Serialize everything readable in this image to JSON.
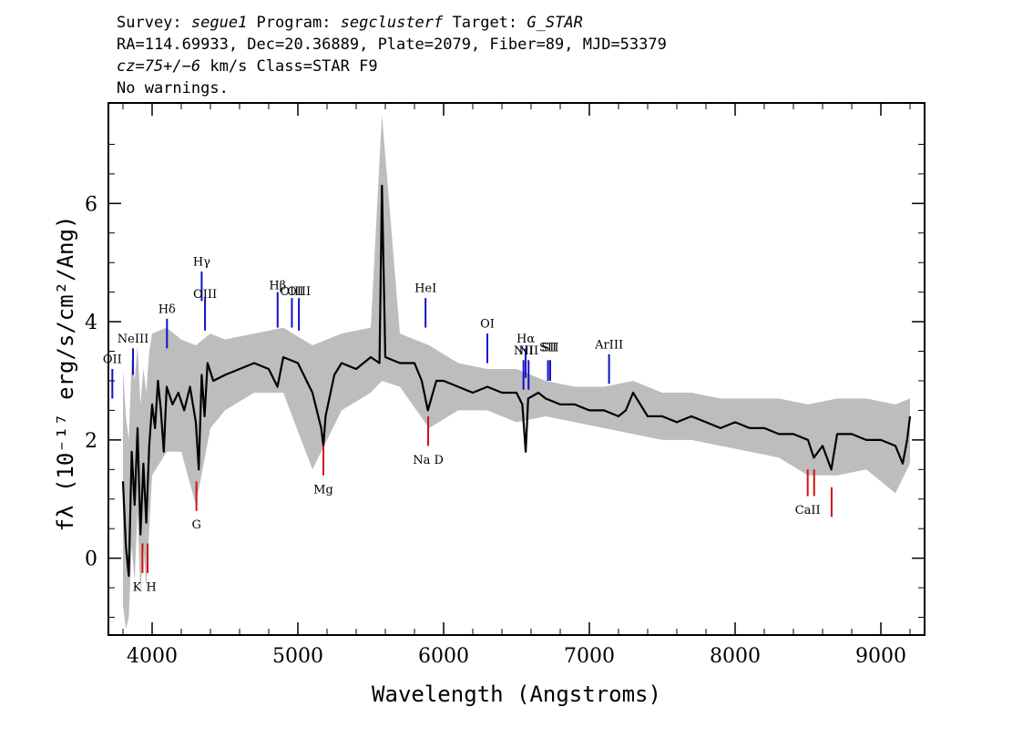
{
  "header": {
    "line1": {
      "survey_label": "Survey: ",
      "survey": "segue1",
      "program_label": " Program: ",
      "program": "segclusterf",
      "target_label": " Target: ",
      "target": "G_STAR"
    },
    "line2": "RA=114.69933, Dec=20.36889, Plate=2079, Fiber=89, MJD=53379",
    "line3": {
      "cz": "cz=75+/−6",
      "rest": " km/s Class=STAR F9"
    },
    "line4": "No warnings."
  },
  "colors": {
    "flux": "#000000",
    "error": "#bdbdbd",
    "emission": "#1010c8",
    "absorption": "#d01010",
    "sky": "#000000"
  },
  "chart_data": {
    "type": "line",
    "xlabel": "Wavelength (Angstroms)",
    "ylabel": "fλ (10⁻¹⁷ erg/s/cm²/Ang)",
    "xlim": [
      3700,
      9300
    ],
    "ylim": [
      -1.3,
      7.7
    ],
    "x_ticks": [
      4000,
      5000,
      6000,
      7000,
      8000,
      9000
    ],
    "y_ticks": [
      0,
      2,
      4,
      6
    ],
    "grid": false,
    "series": [
      {
        "role": "flux",
        "x": [
          3800,
          3820,
          3840,
          3860,
          3880,
          3900,
          3920,
          3940,
          3960,
          3980,
          4000,
          4020,
          4040,
          4060,
          4080,
          4100,
          4140,
          4180,
          4220,
          4260,
          4300,
          4320,
          4340,
          4360,
          4380,
          4420,
          4500,
          4600,
          4700,
          4800,
          4860,
          4900,
          5000,
          5100,
          5160,
          5175,
          5190,
          5250,
          5300,
          5400,
          5500,
          5560,
          5577,
          5600,
          5700,
          5800,
          5850,
          5892,
          5950,
          6000,
          6100,
          6200,
          6300,
          6400,
          6500,
          6540,
          6563,
          6580,
          6650,
          6700,
          6800,
          6900,
          7000,
          7100,
          7200,
          7250,
          7300,
          7400,
          7500,
          7600,
          7700,
          7800,
          7900,
          8000,
          8100,
          8200,
          8300,
          8400,
          8500,
          8540,
          8600,
          8660,
          8700,
          8800,
          8900,
          9000,
          9100,
          9150,
          9180,
          9200
        ],
        "y": [
          1.3,
          0.2,
          -0.3,
          1.8,
          0.9,
          2.2,
          0.4,
          1.6,
          0.6,
          1.9,
          2.6,
          2.2,
          3.0,
          2.5,
          1.8,
          2.9,
          2.6,
          2.8,
          2.5,
          2.9,
          2.3,
          1.5,
          3.1,
          2.4,
          3.3,
          3.0,
          3.1,
          3.2,
          3.3,
          3.2,
          2.9,
          3.4,
          3.3,
          2.8,
          2.2,
          1.9,
          2.4,
          3.1,
          3.3,
          3.2,
          3.4,
          3.3,
          6.3,
          3.4,
          3.3,
          3.3,
          3.0,
          2.5,
          3.0,
          3.0,
          2.9,
          2.8,
          2.9,
          2.8,
          2.8,
          2.6,
          1.8,
          2.7,
          2.8,
          2.7,
          2.6,
          2.6,
          2.5,
          2.5,
          2.4,
          2.5,
          2.8,
          2.4,
          2.4,
          2.3,
          2.4,
          2.3,
          2.2,
          2.3,
          2.2,
          2.2,
          2.1,
          2.1,
          2.0,
          1.7,
          1.9,
          1.5,
          2.1,
          2.1,
          2.0,
          2.0,
          1.9,
          1.6,
          2.0,
          2.4
        ]
      },
      {
        "role": "error",
        "x": [
          3800,
          3820,
          3840,
          3860,
          3880,
          3900,
          3920,
          3940,
          3960,
          3980,
          4000,
          4100,
          4200,
          4300,
          4400,
          4500,
          4700,
          4900,
          5100,
          5300,
          5500,
          5577,
          5700,
          5900,
          6100,
          6300,
          6500,
          6700,
          6900,
          7100,
          7300,
          7500,
          7700,
          7900,
          8100,
          8300,
          8500,
          8700,
          8900,
          9100,
          9200
        ],
        "upper": [
          3.2,
          2.4,
          2.0,
          3.4,
          3.0,
          3.6,
          2.6,
          3.2,
          2.8,
          3.5,
          3.8,
          3.9,
          3.7,
          3.6,
          3.8,
          3.7,
          3.8,
          3.9,
          3.6,
          3.8,
          3.9,
          7.5,
          3.8,
          3.6,
          3.3,
          3.2,
          3.2,
          3.0,
          2.9,
          2.9,
          3.0,
          2.8,
          2.8,
          2.7,
          2.7,
          2.7,
          2.6,
          2.7,
          2.7,
          2.6,
          2.7
        ],
        "lower": [
          -0.8,
          -1.2,
          -1.0,
          0.2,
          -0.4,
          0.8,
          -0.6,
          0.2,
          -0.5,
          0.5,
          1.4,
          1.8,
          1.8,
          0.9,
          2.2,
          2.5,
          2.8,
          2.8,
          1.5,
          2.5,
          2.8,
          3.0,
          2.9,
          2.2,
          2.5,
          2.5,
          2.3,
          2.4,
          2.3,
          2.2,
          2.1,
          2.0,
          2.0,
          1.9,
          1.8,
          1.7,
          1.4,
          1.4,
          1.5,
          1.1,
          1.6
        ]
      }
    ],
    "line_markers": [
      {
        "label": "OII",
        "kind": "emission",
        "x": 3727,
        "y_bottom": 2.7,
        "y_top": 3.2,
        "label_y": 3.3
      },
      {
        "label": "NeIII",
        "kind": "emission",
        "x": 3869,
        "y_bottom": 3.1,
        "y_top": 3.55,
        "label_y": 3.65
      },
      {
        "label": "Hδ",
        "kind": "emission",
        "x": 4102,
        "y_bottom": 3.55,
        "y_top": 4.05,
        "label_y": 4.15
      },
      {
        "label": "Hγ",
        "kind": "emission",
        "x": 4340,
        "y_bottom": 4.35,
        "y_top": 4.85,
        "label_y": 4.95
      },
      {
        "label": "OIII",
        "kind": "emission",
        "x": 4363,
        "y_bottom": 3.85,
        "y_top": 4.4,
        "label_y": 4.4
      },
      {
        "label": "Hβ",
        "kind": "emission",
        "x": 4861,
        "y_bottom": 3.9,
        "y_top": 4.5,
        "label_y": 4.55
      },
      {
        "label": "OIII",
        "kind": "emission",
        "x": 4959,
        "y_bottom": 3.9,
        "y_top": 4.4,
        "label_y": 4.45
      },
      {
        "label": "OIII",
        "kind": "emission",
        "x": 5007,
        "y_bottom": 3.85,
        "y_top": 4.4,
        "label_y": 4.45
      },
      {
        "label": "HeI",
        "kind": "emission",
        "x": 5876,
        "y_bottom": 3.9,
        "y_top": 4.4,
        "label_y": 4.5
      },
      {
        "label": "OI",
        "kind": "emission",
        "x": 6300,
        "y_bottom": 3.3,
        "y_top": 3.8,
        "label_y": 3.9
      },
      {
        "label": "NII",
        "kind": "emission",
        "x": 6548,
        "y_bottom": 2.85,
        "y_top": 3.35,
        "label_y": 3.45
      },
      {
        "label": "Hα",
        "kind": "emission",
        "x": 6563,
        "y_bottom": 3.05,
        "y_top": 3.55,
        "label_y": 3.65
      },
      {
        "label": "NII",
        "kind": "emission",
        "x": 6583,
        "y_bottom": 2.85,
        "y_top": 3.35,
        "label_y": 3.45
      },
      {
        "label": "SII",
        "kind": "emission",
        "x": 6716,
        "y_bottom": 3.0,
        "y_top": 3.35,
        "label_y": 3.5
      },
      {
        "label": "SII",
        "kind": "emission",
        "x": 6731,
        "y_bottom": 3.0,
        "y_top": 3.35,
        "label_y": 3.5
      },
      {
        "label": "ArIII",
        "kind": "emission",
        "x": 7135,
        "y_bottom": 2.95,
        "y_top": 3.45,
        "label_y": 3.55
      },
      {
        "label": "K",
        "kind": "absorption",
        "x": 3934,
        "y_bottom": -0.25,
        "y_top": 0.25,
        "label_y": -0.55
      },
      {
        "label": "H",
        "kind": "absorption",
        "x": 3969,
        "y_bottom": -0.25,
        "y_top": 0.25,
        "label_y": -0.55
      },
      {
        "label": "G",
        "kind": "absorption",
        "x": 4304,
        "y_bottom": 0.8,
        "y_top": 1.3,
        "label_y": 0.5
      },
      {
        "label": "Mg",
        "kind": "absorption",
        "x": 5175,
        "y_bottom": 1.4,
        "y_top": 1.9,
        "label_y": 1.1
      },
      {
        "label": "Na D",
        "kind": "absorption",
        "x": 5894,
        "y_bottom": 1.9,
        "y_top": 2.4,
        "label_y": 1.6
      },
      {
        "label": "CaII",
        "kind": "absorption",
        "x": 8498,
        "y_bottom": 1.05,
        "y_top": 1.5,
        "label_y": 0.75
      },
      {
        "label": "CaII",
        "kind": "absorption",
        "x": 8542,
        "y_bottom": 1.05,
        "y_top": 1.5
      },
      {
        "label": "CaII",
        "kind": "absorption",
        "x": 8662,
        "y_bottom": 0.7,
        "y_top": 1.2
      }
    ]
  }
}
